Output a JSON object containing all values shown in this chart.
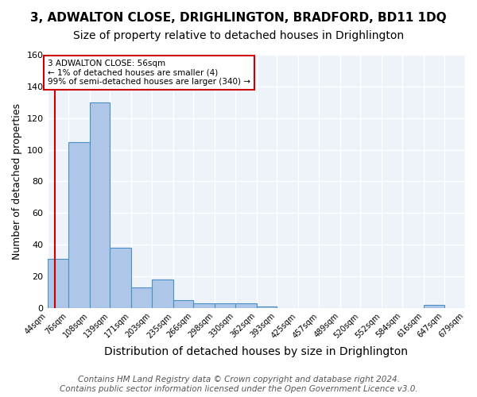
{
  "title": "3, ADWALTON CLOSE, DRIGHLINGTON, BRADFORD, BD11 1DQ",
  "subtitle": "Size of property relative to detached houses in Drighlington",
  "xlabel": "Distribution of detached houses by size in Drighlington",
  "ylabel": "Number of detached properties",
  "bin_edges": [
    44,
    76,
    108,
    139,
    171,
    203,
    235,
    266,
    298,
    330,
    362,
    393,
    425,
    457,
    489,
    520,
    552,
    584,
    616,
    647,
    679
  ],
  "bin_labels": [
    "44sqm",
    "76sqm",
    "108sqm",
    "139sqm",
    "171sqm",
    "203sqm",
    "235sqm",
    "266sqm",
    "298sqm",
    "330sqm",
    "362sqm",
    "393sqm",
    "425sqm",
    "457sqm",
    "489sqm",
    "520sqm",
    "552sqm",
    "584sqm",
    "616sqm",
    "647sqm",
    "679sqm"
  ],
  "counts": [
    31,
    105,
    130,
    38,
    13,
    18,
    5,
    3,
    3,
    3,
    1,
    0,
    0,
    0,
    0,
    0,
    0,
    0,
    2,
    0
  ],
  "bar_facecolor": "#aec6e8",
  "bar_edgecolor": "#4a90c4",
  "ylim": [
    0,
    160
  ],
  "yticks": [
    0,
    20,
    40,
    60,
    80,
    100,
    120,
    140,
    160
  ],
  "property_line_x": 56,
  "property_line_color": "#cc0000",
  "annotation_text": "3 ADWALTON CLOSE: 56sqm\n← 1% of detached houses are smaller (4)\n99% of semi-detached houses are larger (340) →",
  "annotation_box_color": "#ffffff",
  "annotation_box_edgecolor": "#cc0000",
  "footer_line1": "Contains HM Land Registry data © Crown copyright and database right 2024.",
  "footer_line2": "Contains public sector information licensed under the Open Government Licence v3.0.",
  "background_color": "#eef2f9",
  "grid_color": "#ffffff",
  "title_fontsize": 11,
  "subtitle_fontsize": 10,
  "xlabel_fontsize": 10,
  "ylabel_fontsize": 9,
  "footer_fontsize": 7.5
}
